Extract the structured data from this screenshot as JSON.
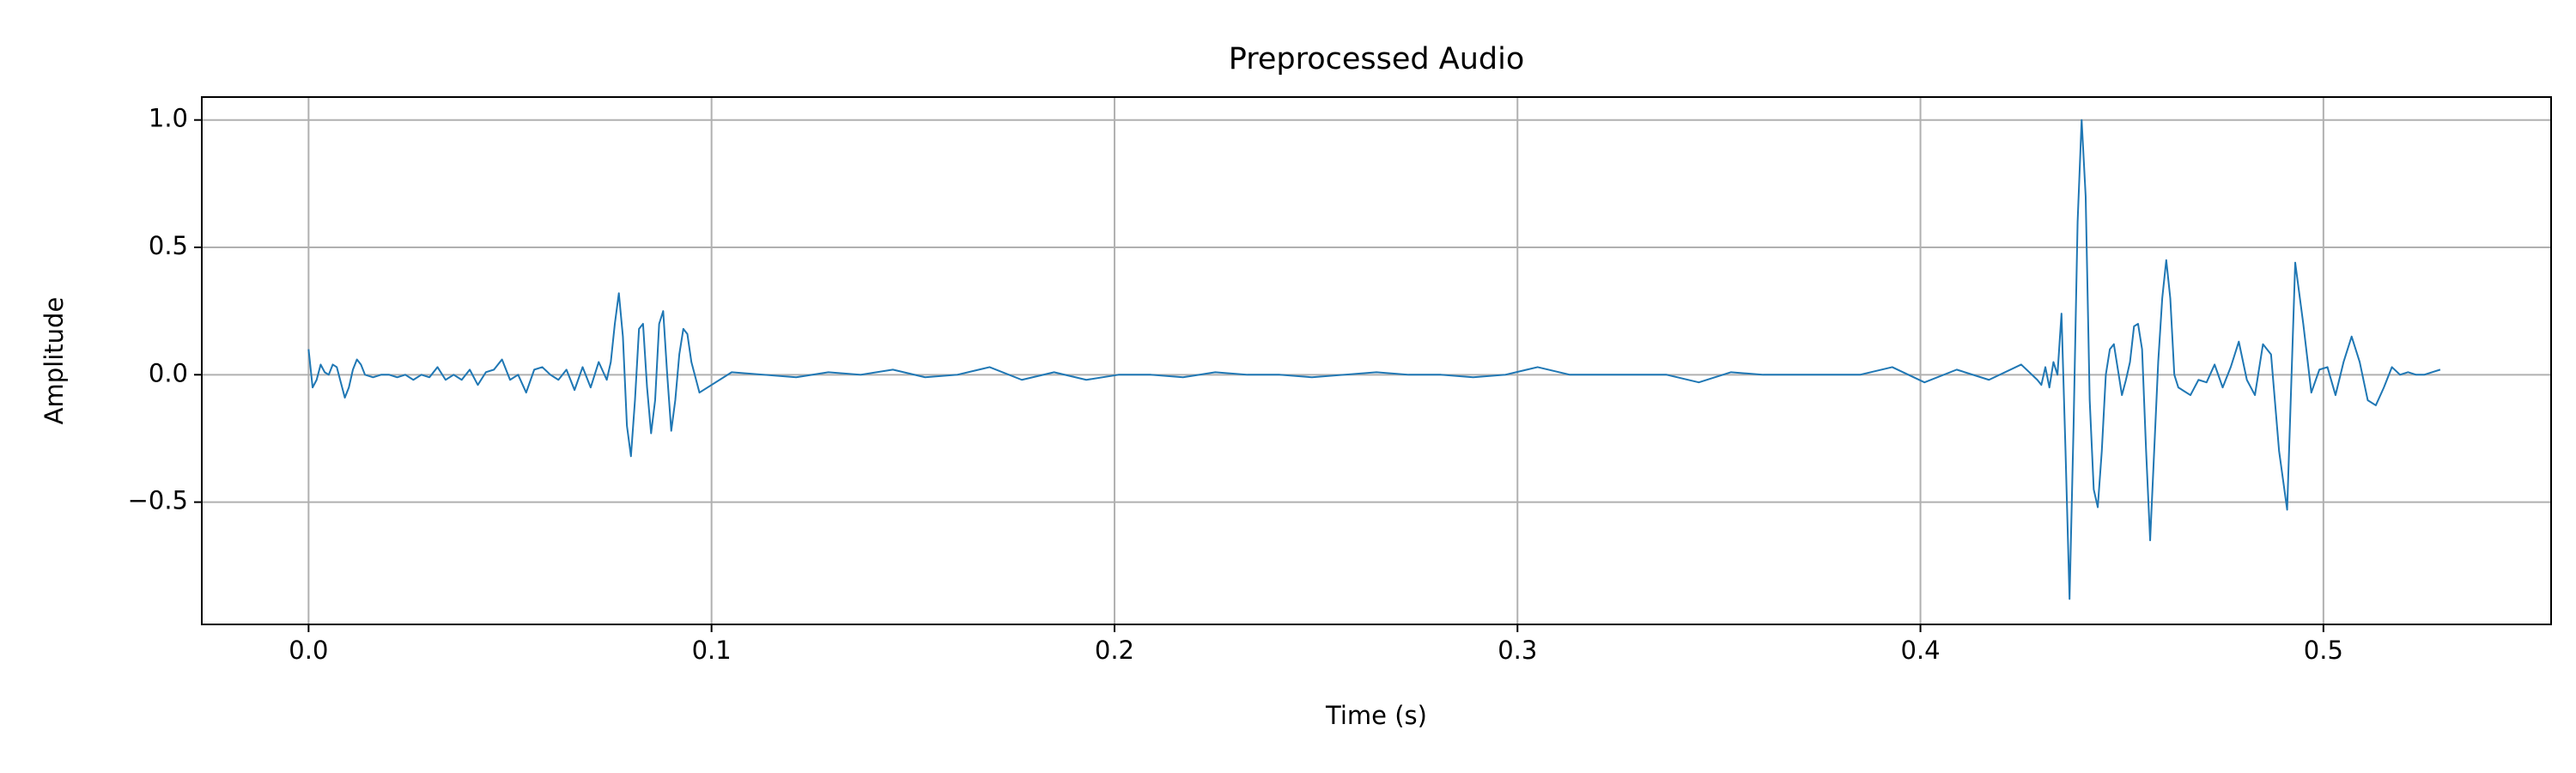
{
  "chart_data": {
    "type": "line",
    "title": "Preprocessed Audio",
    "x_label": "Time (s)",
    "y_label": "Amplitude",
    "x": [
      0,
      0.001,
      0.002,
      0.003,
      0.004,
      0.005,
      0.006,
      0.007,
      0.008,
      0.009,
      0.01,
      0.011,
      0.012,
      0.013,
      0.014,
      0.016,
      0.018,
      0.02,
      0.022,
      0.024,
      0.026,
      0.028,
      0.03,
      0.032,
      0.034,
      0.036,
      0.038,
      0.04,
      0.042,
      0.044,
      0.046,
      0.048,
      0.05,
      0.052,
      0.054,
      0.056,
      0.058,
      0.06,
      0.062,
      0.064,
      0.066,
      0.068,
      0.07,
      0.072,
      0.074,
      0.075,
      0.076,
      0.077,
      0.078,
      0.079,
      0.08,
      0.081,
      0.082,
      0.083,
      0.084,
      0.085,
      0.086,
      0.087,
      0.088,
      0.089,
      0.09,
      0.091,
      0.092,
      0.093,
      0.094,
      0.095,
      0.097,
      0.105,
      0.113,
      0.121,
      0.129,
      0.137,
      0.145,
      0.153,
      0.161,
      0.169,
      0.177,
      0.185,
      0.193,
      0.201,
      0.209,
      0.217,
      0.225,
      0.233,
      0.241,
      0.249,
      0.257,
      0.265,
      0.273,
      0.281,
      0.289,
      0.297,
      0.305,
      0.313,
      0.321,
      0.329,
      0.337,
      0.345,
      0.353,
      0.361,
      0.369,
      0.377,
      0.385,
      0.393,
      0.401,
      0.409,
      0.417,
      0.425,
      0.429,
      0.43,
      0.431,
      0.432,
      0.433,
      0.434,
      0.435,
      0.436,
      0.437,
      0.438,
      0.439,
      0.44,
      0.441,
      0.442,
      0.443,
      0.444,
      0.445,
      0.446,
      0.447,
      0.448,
      0.449,
      0.45,
      0.451,
      0.452,
      0.453,
      0.454,
      0.455,
      0.456,
      0.457,
      0.458,
      0.459,
      0.46,
      0.461,
      0.462,
      0.463,
      0.464,
      0.465,
      0.467,
      0.469,
      0.471,
      0.473,
      0.475,
      0.477,
      0.479,
      0.481,
      0.483,
      0.485,
      0.487,
      0.489,
      0.491,
      0.493,
      0.495,
      0.497,
      0.499,
      0.501,
      0.503,
      0.505,
      0.507,
      0.509,
      0.511,
      0.513,
      0.515,
      0.517,
      0.519,
      0.521,
      0.523,
      0.525,
      0.527,
      0.529
    ],
    "series": [
      {
        "color": "#1f77b4",
        "values": [
          0.1,
          -0.05,
          -0.02,
          0.04,
          0.01,
          0.0,
          0.04,
          0.03,
          -0.03,
          -0.09,
          -0.05,
          0.02,
          0.06,
          0.04,
          0.0,
          -0.01,
          0.0,
          0.0,
          -0.01,
          0.0,
          -0.02,
          0.0,
          -0.01,
          0.03,
          -0.02,
          0.0,
          -0.02,
          0.02,
          -0.04,
          0.01,
          0.02,
          0.06,
          -0.02,
          0.0,
          -0.07,
          0.02,
          0.03,
          0.0,
          -0.02,
          0.02,
          -0.06,
          0.03,
          -0.05,
          0.05,
          -0.02,
          0.05,
          0.2,
          0.32,
          0.15,
          -0.2,
          -0.32,
          -0.1,
          0.18,
          0.2,
          -0.05,
          -0.23,
          -0.1,
          0.2,
          0.25,
          0.0,
          -0.22,
          -0.1,
          0.08,
          0.18,
          0.16,
          0.05,
          -0.07,
          0.01,
          0.0,
          -0.01,
          0.01,
          0.0,
          0.02,
          -0.01,
          0.0,
          0.03,
          -0.02,
          0.01,
          -0.02,
          0.0,
          0.0,
          -0.01,
          0.01,
          0.0,
          0.0,
          -0.01,
          0.0,
          0.01,
          0.0,
          0.0,
          -0.01,
          0.0,
          0.03,
          0.0,
          0.0,
          0.0,
          0.0,
          -0.03,
          0.01,
          0.0,
          0.0,
          0.0,
          0.0,
          0.03,
          -0.03,
          0.02,
          -0.02,
          0.04,
          -0.02,
          -0.04,
          0.03,
          -0.05,
          0.05,
          0.0,
          0.24,
          -0.3,
          -0.88,
          -0.2,
          0.6,
          1.0,
          0.7,
          -0.1,
          -0.45,
          -0.52,
          -0.3,
          0.0,
          0.1,
          0.12,
          0.02,
          -0.08,
          -0.02,
          0.05,
          0.19,
          0.2,
          0.1,
          -0.3,
          -0.65,
          -0.3,
          0.05,
          0.3,
          0.45,
          0.3,
          0.0,
          -0.05,
          -0.06,
          -0.08,
          -0.02,
          -0.03,
          0.04,
          -0.05,
          0.03,
          0.13,
          -0.02,
          -0.08,
          0.12,
          0.08,
          -0.3,
          -0.53,
          0.44,
          0.2,
          -0.07,
          0.02,
          0.03,
          -0.08,
          0.05,
          0.15,
          0.05,
          -0.1,
          -0.12,
          -0.05,
          0.03,
          0.0,
          0.01,
          0.0,
          0.0,
          0.01,
          0.02
        ]
      }
    ],
    "xlim": [
      -0.0265,
      0.5565
    ],
    "ylim": [
      -0.98,
      1.09
    ],
    "xticks": [
      {
        "value": 0,
        "label": "0.0"
      },
      0.1,
      0.2,
      0.3,
      0.4,
      0.5
    ],
    "yticks": [
      {
        "value": -0.5,
        "label": "−0.5"
      },
      {
        "value": 0,
        "label": "0.0"
      },
      0.5,
      {
        "value": 1,
        "label": "1.0"
      }
    ],
    "grid": true
  }
}
